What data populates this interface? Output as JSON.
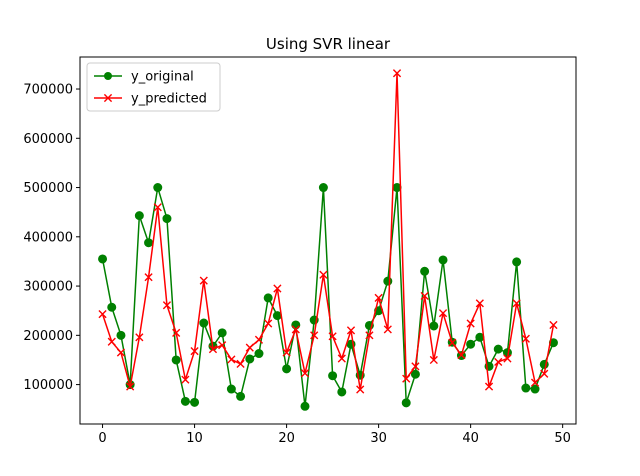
{
  "chart_data": {
    "type": "line",
    "title": "Using SVR linear",
    "xlabel": "",
    "ylabel": "",
    "xlim": [
      -2.45,
      51.45
    ],
    "ylim": [
      20000,
      765000
    ],
    "xticks": [
      0,
      10,
      20,
      30,
      40,
      50
    ],
    "yticks": [
      100000,
      200000,
      300000,
      400000,
      500000,
      600000,
      700000
    ],
    "grid": false,
    "legend_position": "top-left",
    "x": [
      0,
      1,
      2,
      3,
      4,
      5,
      6,
      7,
      8,
      9,
      10,
      11,
      12,
      13,
      14,
      15,
      16,
      17,
      18,
      19,
      20,
      21,
      22,
      23,
      24,
      25,
      26,
      27,
      28,
      29,
      30,
      31,
      32,
      33,
      34,
      35,
      36,
      37,
      38,
      39,
      40,
      41,
      42,
      43,
      44,
      45,
      46,
      47,
      48,
      49
    ],
    "series": [
      {
        "name": "y_original",
        "color": "#008000",
        "marker": "circle",
        "values": [
          355000,
          257000,
          200000,
          100000,
          443000,
          388000,
          500000,
          437000,
          150000,
          66000,
          64000,
          225000,
          178000,
          205000,
          91000,
          76000,
          152000,
          163000,
          276000,
          240000,
          132000,
          221000,
          56000,
          231000,
          500000,
          118000,
          85000,
          182000,
          119000,
          220000,
          250000,
          310000,
          500000,
          63000,
          121000,
          330000,
          219000,
          353000,
          186000,
          159000,
          182000,
          196000,
          137000,
          172000,
          165000,
          349000,
          93000,
          91000,
          141000,
          185000
        ]
      },
      {
        "name": "y_predicted",
        "color": "#ff0000",
        "marker": "x",
        "values": [
          243000,
          187000,
          165000,
          96000,
          196000,
          318000,
          460000,
          261000,
          205000,
          110000,
          168000,
          311000,
          172000,
          180000,
          151000,
          142000,
          175000,
          191000,
          224000,
          295000,
          165000,
          212000,
          123000,
          200000,
          323000,
          198000,
          153000,
          210000,
          90000,
          200000,
          276000,
          212000,
          732000,
          112000,
          137000,
          280000,
          150000,
          245000,
          185000,
          160000,
          224000,
          265000,
          96000,
          146000,
          153000,
          265000,
          193000,
          104000,
          122000,
          221000
        ]
      }
    ]
  }
}
